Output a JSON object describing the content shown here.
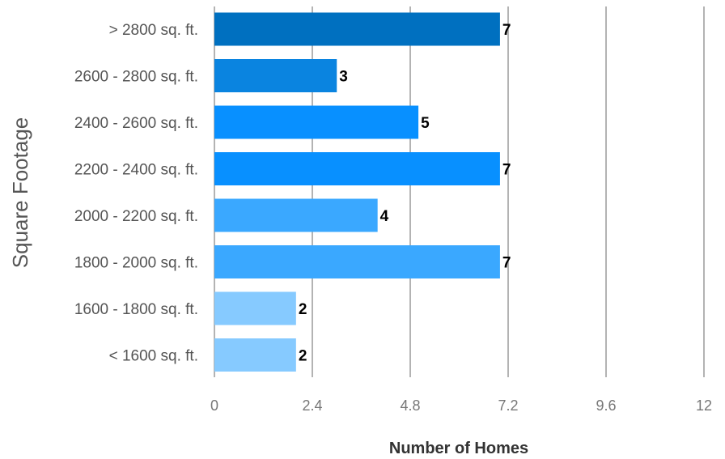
{
  "chart_data": {
    "type": "bar",
    "orientation": "horizontal",
    "title": "",
    "xlabel": "Number of Homes",
    "ylabel": "Square Footage",
    "categories": [
      "> 2800 sq. ft.",
      "2600 - 2800 sq. ft.",
      "2400 - 2600 sq. ft.",
      "2200 - 2400 sq. ft.",
      "2000 - 2200 sq. ft.",
      "1800 - 2000 sq. ft.",
      "1600 - 1800 sq. ft.",
      "< 1600 sq. ft."
    ],
    "values": [
      7,
      3,
      5,
      7,
      4,
      7,
      2,
      2
    ],
    "value_labels": [
      "7",
      "3",
      "5",
      "7",
      "4",
      "7",
      "2",
      "2"
    ],
    "bar_colors": [
      "#0070c0",
      "#0a84e0",
      "#0890ff",
      "#0890ff",
      "#3aa8ff",
      "#3aa8ff",
      "#86caff",
      "#86caff"
    ],
    "xlim": [
      0,
      12
    ],
    "x_ticks": [
      0,
      2.4,
      4.8,
      7.2,
      9.6,
      12
    ],
    "x_tick_labels": [
      "0",
      "2.4",
      "4.8",
      "7.2",
      "9.6",
      "12"
    ],
    "grid": true,
    "legend": "none"
  }
}
